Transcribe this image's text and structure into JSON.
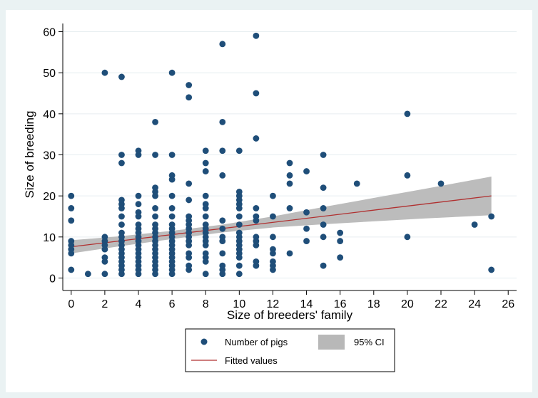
{
  "chart_data": {
    "type": "scatter",
    "title": "",
    "xlabel": "Size of breeders' family",
    "ylabel": "Size of breeding",
    "xlim": [
      -0.5,
      26.5
    ],
    "ylim": [
      -2,
      62
    ],
    "x_ticks": [
      0,
      2,
      4,
      6,
      8,
      10,
      12,
      14,
      16,
      18,
      20,
      22,
      24,
      26
    ],
    "y_ticks": [
      0,
      10,
      20,
      30,
      40,
      50,
      60
    ],
    "grid": true,
    "legend_position": "bottom",
    "series": [
      {
        "name": "Number of pigs",
        "kind": "scatter",
        "color": "#1f4e79",
        "points": [
          [
            0,
            2
          ],
          [
            0,
            6
          ],
          [
            0,
            7
          ],
          [
            0,
            8
          ],
          [
            0,
            9
          ],
          [
            0,
            14
          ],
          [
            0,
            17
          ],
          [
            0,
            20
          ],
          [
            1,
            1
          ],
          [
            2,
            1
          ],
          [
            2,
            4
          ],
          [
            2,
            5
          ],
          [
            2,
            7
          ],
          [
            2,
            8
          ],
          [
            2,
            9
          ],
          [
            2,
            10
          ],
          [
            2,
            50
          ],
          [
            3,
            1
          ],
          [
            3,
            2
          ],
          [
            3,
            3
          ],
          [
            3,
            4
          ],
          [
            3,
            5
          ],
          [
            3,
            6
          ],
          [
            3,
            7
          ],
          [
            3,
            8
          ],
          [
            3,
            9
          ],
          [
            3,
            10
          ],
          [
            3,
            11
          ],
          [
            3,
            13
          ],
          [
            3,
            15
          ],
          [
            3,
            17
          ],
          [
            3,
            18
          ],
          [
            3,
            19
          ],
          [
            3,
            28
          ],
          [
            3,
            30
          ],
          [
            3,
            49
          ],
          [
            4,
            1
          ],
          [
            4,
            2
          ],
          [
            4,
            3
          ],
          [
            4,
            4
          ],
          [
            4,
            5
          ],
          [
            4,
            6
          ],
          [
            4,
            7
          ],
          [
            4,
            8
          ],
          [
            4,
            9
          ],
          [
            4,
            10
          ],
          [
            4,
            11
          ],
          [
            4,
            12
          ],
          [
            4,
            13
          ],
          [
            4,
            15
          ],
          [
            4,
            16
          ],
          [
            4,
            18
          ],
          [
            4,
            20
          ],
          [
            4,
            30
          ],
          [
            4,
            31
          ],
          [
            5,
            1
          ],
          [
            5,
            2
          ],
          [
            5,
            3
          ],
          [
            5,
            4
          ],
          [
            5,
            5
          ],
          [
            5,
            6
          ],
          [
            5,
            7
          ],
          [
            5,
            8
          ],
          [
            5,
            9
          ],
          [
            5,
            10
          ],
          [
            5,
            11
          ],
          [
            5,
            12
          ],
          [
            5,
            13
          ],
          [
            5,
            15
          ],
          [
            5,
            17
          ],
          [
            5,
            20
          ],
          [
            5,
            21
          ],
          [
            5,
            22
          ],
          [
            5,
            30
          ],
          [
            5,
            38
          ],
          [
            6,
            1
          ],
          [
            6,
            2
          ],
          [
            6,
            3
          ],
          [
            6,
            4
          ],
          [
            6,
            5
          ],
          [
            6,
            6
          ],
          [
            6,
            7
          ],
          [
            6,
            8
          ],
          [
            6,
            9
          ],
          [
            6,
            10
          ],
          [
            6,
            11
          ],
          [
            6,
            12
          ],
          [
            6,
            13
          ],
          [
            6,
            15
          ],
          [
            6,
            17
          ],
          [
            6,
            20
          ],
          [
            6,
            24
          ],
          [
            6,
            25
          ],
          [
            6,
            30
          ],
          [
            6,
            50
          ],
          [
            7,
            2
          ],
          [
            7,
            3
          ],
          [
            7,
            5
          ],
          [
            7,
            6
          ],
          [
            7,
            8
          ],
          [
            7,
            9
          ],
          [
            7,
            10
          ],
          [
            7,
            11
          ],
          [
            7,
            12
          ],
          [
            7,
            13
          ],
          [
            7,
            14
          ],
          [
            7,
            15
          ],
          [
            7,
            19
          ],
          [
            7,
            23
          ],
          [
            7,
            44
          ],
          [
            7,
            47
          ],
          [
            8,
            1
          ],
          [
            8,
            4
          ],
          [
            8,
            5
          ],
          [
            8,
            6
          ],
          [
            8,
            8
          ],
          [
            8,
            9
          ],
          [
            8,
            10
          ],
          [
            8,
            11
          ],
          [
            8,
            12
          ],
          [
            8,
            13
          ],
          [
            8,
            15
          ],
          [
            8,
            17
          ],
          [
            8,
            18
          ],
          [
            8,
            20
          ],
          [
            8,
            26
          ],
          [
            8,
            28
          ],
          [
            8,
            31
          ],
          [
            9,
            1
          ],
          [
            9,
            2
          ],
          [
            9,
            3
          ],
          [
            9,
            6
          ],
          [
            9,
            9
          ],
          [
            9,
            10
          ],
          [
            9,
            12
          ],
          [
            9,
            14
          ],
          [
            9,
            25
          ],
          [
            9,
            31
          ],
          [
            9,
            38
          ],
          [
            9,
            57
          ],
          [
            10,
            1
          ],
          [
            10,
            3
          ],
          [
            10,
            5
          ],
          [
            10,
            6
          ],
          [
            10,
            7
          ],
          [
            10,
            8
          ],
          [
            10,
            9
          ],
          [
            10,
            10
          ],
          [
            10,
            11
          ],
          [
            10,
            13
          ],
          [
            10,
            15
          ],
          [
            10,
            17
          ],
          [
            10,
            18
          ],
          [
            10,
            19
          ],
          [
            10,
            20
          ],
          [
            10,
            21
          ],
          [
            10,
            31
          ],
          [
            11,
            3
          ],
          [
            11,
            4
          ],
          [
            11,
            8
          ],
          [
            11,
            9
          ],
          [
            11,
            10
          ],
          [
            11,
            14
          ],
          [
            11,
            15
          ],
          [
            11,
            17
          ],
          [
            11,
            34
          ],
          [
            11,
            45
          ],
          [
            11,
            59
          ],
          [
            12,
            2
          ],
          [
            12,
            3
          ],
          [
            12,
            4
          ],
          [
            12,
            6
          ],
          [
            12,
            7
          ],
          [
            12,
            10
          ],
          [
            12,
            15
          ],
          [
            12,
            20
          ],
          [
            13,
            6
          ],
          [
            13,
            17
          ],
          [
            13,
            23
          ],
          [
            13,
            25
          ],
          [
            13,
            28
          ],
          [
            14,
            9
          ],
          [
            14,
            12
          ],
          [
            14,
            16
          ],
          [
            14,
            26
          ],
          [
            15,
            3
          ],
          [
            15,
            10
          ],
          [
            15,
            13
          ],
          [
            15,
            17
          ],
          [
            15,
            22
          ],
          [
            15,
            30
          ],
          [
            16,
            5
          ],
          [
            16,
            9
          ],
          [
            16,
            11
          ],
          [
            17,
            23
          ],
          [
            20,
            10
          ],
          [
            20,
            25
          ],
          [
            20,
            40
          ],
          [
            22,
            23
          ],
          [
            24,
            13
          ],
          [
            25,
            2
          ],
          [
            25,
            15
          ]
        ]
      },
      {
        "name": "Fitted values",
        "kind": "line",
        "color": "#b03030",
        "x": [
          0,
          25
        ],
        "y": [
          7.6,
          20.0
        ]
      },
      {
        "name": "95% CI",
        "kind": "band",
        "color": "#b8b8b8",
        "x": [
          0,
          3,
          6,
          9,
          12,
          15,
          18,
          21,
          25
        ],
        "lower": [
          6.0,
          7.8,
          9.5,
          11.1,
          12.3,
          13.1,
          13.8,
          14.5,
          15.3
        ],
        "upper": [
          9.2,
          10.2,
          11.5,
          13.0,
          15.0,
          17.3,
          19.5,
          21.7,
          24.7
        ]
      }
    ],
    "legend": {
      "entries": [
        "Number of pigs",
        "95% CI",
        "Fitted values"
      ]
    },
    "colors": {
      "outer_background": "#eaf2f3",
      "plot_background": "#ffffff",
      "gridline": "#e6eef0",
      "border": "#9aa3a6",
      "marker": "#1f4e79",
      "fit_line": "#b03030",
      "ci_band": "#b8b8b8"
    }
  }
}
